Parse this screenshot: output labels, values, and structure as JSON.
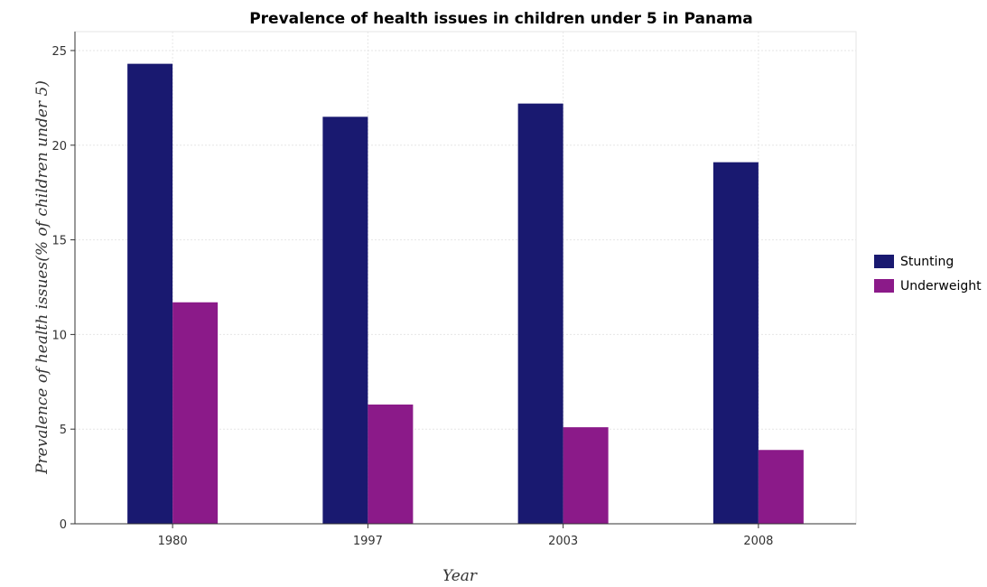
{
  "chart_data": {
    "type": "bar",
    "title": "Prevalence of health issues in children under 5 in Panama",
    "xlabel": "Year",
    "ylabel": "Prevalence of health issues(% of children under 5)",
    "categories": [
      "1980",
      "1997",
      "2003",
      "2008"
    ],
    "series": [
      {
        "name": "Stunting",
        "values": [
          24.3,
          21.5,
          22.2,
          19.1
        ],
        "color": "#191970"
      },
      {
        "name": "Underweight",
        "values": [
          11.7,
          6.3,
          5.1,
          3.9
        ],
        "color": "#8b1a89"
      }
    ],
    "ylim": [
      0,
      26
    ],
    "yticks": [
      0,
      5,
      10,
      15,
      20,
      25
    ],
    "grid": true,
    "legend_position": "right"
  }
}
